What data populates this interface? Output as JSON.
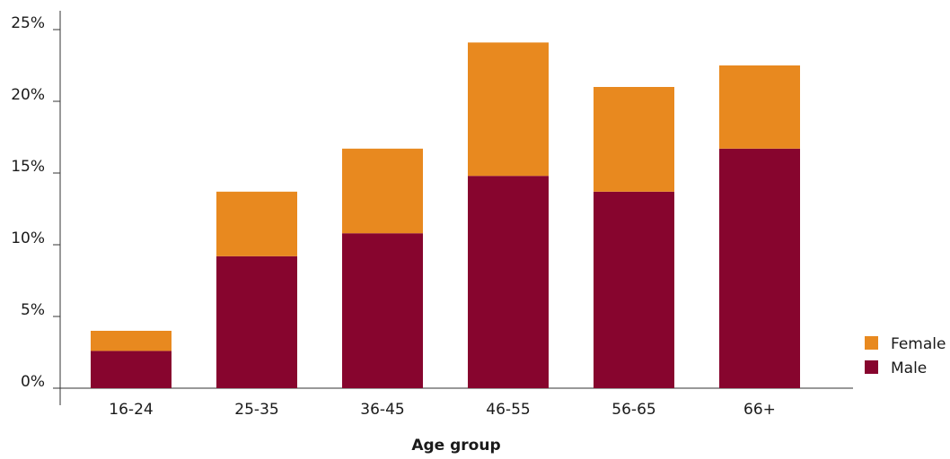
{
  "chart_data": {
    "type": "bar",
    "stacked": true,
    "title": "",
    "xlabel": "Age group",
    "ylabel": "",
    "categories": [
      "16-24",
      "25-35",
      "36-45",
      "46-55",
      "56-65",
      "66+"
    ],
    "series": [
      {
        "name": "Male",
        "color": "#87052E",
        "values": [
          2.6,
          9.2,
          10.8,
          14.8,
          13.7,
          16.7
        ]
      },
      {
        "name": "Female",
        "color": "#E8891F",
        "values": [
          1.4,
          4.5,
          5.9,
          9.3,
          7.3,
          5.8
        ]
      }
    ],
    "yticks": [
      "0%",
      "5%",
      "10%",
      "15%",
      "20%",
      "25%"
    ],
    "ylim": [
      0,
      25
    ],
    "grid": false,
    "legend_position": "right",
    "legend_order": [
      "Female",
      "Male"
    ]
  }
}
